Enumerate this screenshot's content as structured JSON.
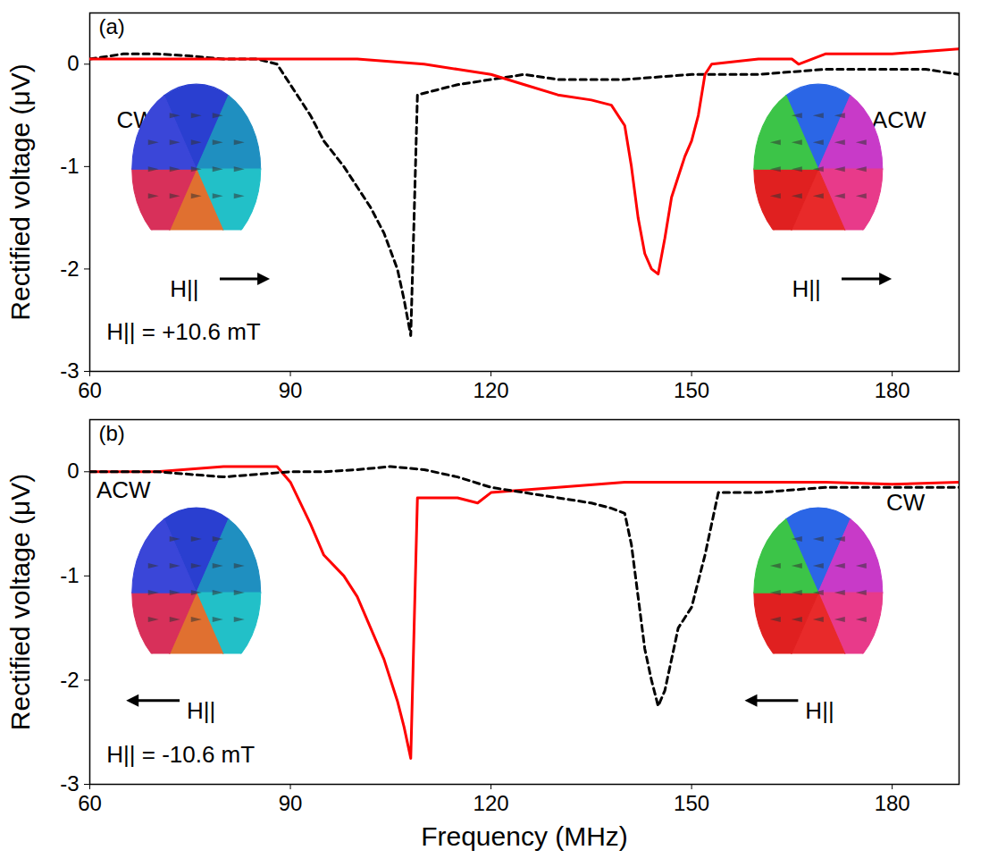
{
  "chart_data": [
    {
      "type": "line",
      "title": "(a)",
      "ylabel": "Rectified voltage (μV)",
      "xlim": [
        60,
        190
      ],
      "xticks": [
        60,
        90,
        120,
        150,
        180
      ],
      "ylim": [
        -3,
        0.5
      ],
      "yticks": [
        -3,
        -2,
        -1,
        0
      ],
      "annotations": [
        "CW",
        "ACW",
        "H||",
        "H||",
        "H|| = +10.6 mT"
      ],
      "series": [
        {
          "color": "#000000",
          "line_style": "dashed",
          "x": [
            60,
            65,
            70,
            75,
            80,
            85,
            88,
            90,
            93,
            95,
            98,
            100,
            102,
            104,
            106,
            107,
            108,
            108.5,
            109,
            112,
            115,
            120,
            125,
            130,
            140,
            150,
            160,
            170,
            175,
            180,
            185,
            190
          ],
          "values": [
            0.05,
            0.1,
            0.1,
            0.08,
            0.05,
            0.05,
            0,
            -0.2,
            -0.5,
            -0.75,
            -1.0,
            -1.2,
            -1.4,
            -1.65,
            -2.0,
            -2.3,
            -2.65,
            -1.5,
            -0.3,
            -0.25,
            -0.2,
            -0.15,
            -0.1,
            -0.15,
            -0.15,
            -0.1,
            -0.1,
            -0.05,
            -0.05,
            -0.05,
            -0.05,
            -0.1
          ]
        },
        {
          "color": "#ff0000",
          "line_style": "solid",
          "x": [
            60,
            70,
            80,
            90,
            100,
            110,
            115,
            120,
            125,
            130,
            135,
            138,
            140,
            141,
            142,
            143,
            144,
            145,
            146,
            147,
            148,
            149,
            150,
            151,
            152,
            153,
            160,
            165,
            166,
            170,
            180,
            190
          ],
          "values": [
            0.05,
            0.05,
            0.05,
            0.05,
            0.05,
            0,
            -0.05,
            -0.1,
            -0.2,
            -0.3,
            -0.35,
            -0.4,
            -0.6,
            -1.0,
            -1.5,
            -1.85,
            -2.0,
            -2.05,
            -1.7,
            -1.3,
            -1.1,
            -0.9,
            -0.75,
            -0.5,
            -0.1,
            0,
            0.05,
            0.05,
            0,
            0.1,
            0.1,
            0.15
          ]
        }
      ]
    },
    {
      "type": "line",
      "title": "(b)",
      "xlabel": "Frequency (MHz)",
      "ylabel": "Rectified voltage (μV)",
      "xlim": [
        60,
        190
      ],
      "xticks": [
        60,
        90,
        120,
        150,
        180
      ],
      "ylim": [
        -3,
        0.5
      ],
      "yticks": [
        -3,
        -2,
        -1,
        0
      ],
      "annotations": [
        "ACW",
        "CW",
        "H||",
        "H||",
        "H|| = -10.6 mT"
      ],
      "series": [
        {
          "color": "#ff0000",
          "line_style": "solid",
          "x": [
            60,
            70,
            80,
            88,
            90,
            93,
            95,
            98,
            100,
            102,
            104,
            106,
            107,
            108,
            108.5,
            109,
            112,
            115,
            118,
            120,
            130,
            140,
            150,
            160,
            170,
            180,
            190
          ],
          "values": [
            0,
            0,
            0.05,
            0.05,
            -0.1,
            -0.5,
            -0.8,
            -1.0,
            -1.2,
            -1.5,
            -1.8,
            -2.2,
            -2.45,
            -2.75,
            -1.5,
            -0.25,
            -0.25,
            -0.25,
            -0.3,
            -0.2,
            -0.15,
            -0.1,
            -0.1,
            -0.1,
            -0.1,
            -0.12,
            -0.1
          ]
        },
        {
          "color": "#000000",
          "line_style": "dashed",
          "x": [
            60,
            70,
            80,
            90,
            95,
            100,
            105,
            110,
            115,
            120,
            125,
            130,
            135,
            138,
            140,
            141,
            142,
            143,
            144,
            145,
            146,
            147,
            148,
            149,
            150,
            152,
            154,
            155,
            160,
            170,
            180,
            190
          ],
          "values": [
            0,
            0,
            -0.05,
            0,
            0,
            0.02,
            0.05,
            0.02,
            -0.05,
            -0.15,
            -0.2,
            -0.25,
            -0.3,
            -0.35,
            -0.4,
            -0.7,
            -1.2,
            -1.7,
            -2.0,
            -2.25,
            -2.1,
            -1.8,
            -1.5,
            -1.4,
            -1.3,
            -0.8,
            -0.2,
            -0.2,
            -0.2,
            -0.15,
            -0.15,
            -0.15
          ]
        }
      ]
    }
  ]
}
